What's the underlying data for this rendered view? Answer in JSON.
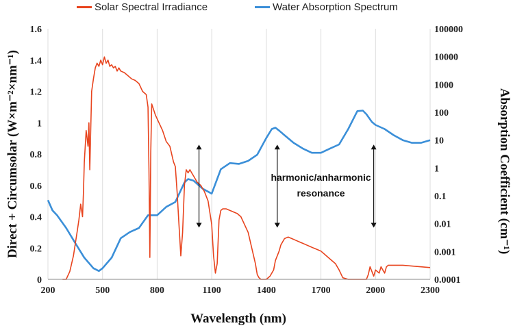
{
  "chart_data": {
    "type": "line",
    "title": "",
    "xlabel": "Wavelength (nm)",
    "ylabel_left": "Direct + Circumsolar (W×m⁻²×nm⁻¹)",
    "ylabel_right": "Absorption Coefficient (cm⁻¹)",
    "xlim": [
      200,
      2300
    ],
    "ylim_left": [
      0,
      1.6
    ],
    "ylim_right": [
      0.0001,
      100000
    ],
    "right_scale": "log",
    "x_ticks": [
      "200",
      "500",
      "800",
      "1100",
      "1400",
      "1700",
      "2000",
      "2300"
    ],
    "y_left_ticks": [
      "0",
      "0.2",
      "0.4",
      "0.6",
      "0.8",
      "1",
      "1.2",
      "1.4",
      "1.6"
    ],
    "y_right_ticks": [
      "0.0001",
      "0.001",
      "0.01",
      "0.1",
      "1",
      "10",
      "100",
      "1000",
      "10000",
      "100000"
    ],
    "legend_position": "top",
    "grid": "vertical",
    "series": [
      {
        "name": "Solar Spectral Irradiance",
        "axis": "left",
        "color": "#e8441e",
        "x": [
          280,
          300,
          320,
          340,
          360,
          370,
          380,
          390,
          395,
          400,
          410,
          420,
          425,
          430,
          440,
          450,
          460,
          470,
          480,
          490,
          500,
          510,
          520,
          530,
          540,
          550,
          560,
          570,
          580,
          590,
          600,
          620,
          640,
          660,
          680,
          700,
          720,
          740,
          750,
          755,
          760,
          765,
          770,
          790,
          810,
          830,
          850,
          870,
          890,
          900,
          910,
          920,
          930,
          940,
          950,
          960,
          970,
          980,
          990,
          1000,
          1020,
          1040,
          1060,
          1080,
          1100,
          1110,
          1120,
          1130,
          1140,
          1150,
          1160,
          1180,
          1200,
          1220,
          1240,
          1260,
          1280,
          1300,
          1320,
          1340,
          1350,
          1360,
          1370,
          1380,
          1400,
          1420,
          1440,
          1450,
          1470,
          1480,
          1500,
          1520,
          1540,
          1560,
          1580,
          1600,
          1620,
          1640,
          1660,
          1680,
          1700,
          1720,
          1740,
          1760,
          1780,
          1800,
          1820,
          1850,
          1900,
          1950,
          1960,
          1970,
          1980,
          1990,
          2000,
          2020,
          2030,
          2040,
          2050,
          2060,
          2070,
          2100,
          2150,
          2200,
          2250,
          2300
        ],
        "y": [
          0,
          0,
          0.05,
          0.15,
          0.3,
          0.38,
          0.48,
          0.4,
          0.55,
          0.75,
          0.95,
          0.85,
          1.0,
          0.7,
          1.2,
          1.28,
          1.35,
          1.38,
          1.36,
          1.4,
          1.37,
          1.42,
          1.38,
          1.4,
          1.36,
          1.37,
          1.35,
          1.36,
          1.33,
          1.35,
          1.33,
          1.32,
          1.3,
          1.28,
          1.27,
          1.25,
          1.2,
          1.18,
          1.1,
          0.7,
          0.14,
          0.8,
          1.12,
          1.05,
          1.0,
          0.95,
          0.88,
          0.85,
          0.75,
          0.72,
          0.55,
          0.35,
          0.15,
          0.3,
          0.6,
          0.7,
          0.68,
          0.7,
          0.68,
          0.66,
          0.62,
          0.6,
          0.56,
          0.5,
          0.35,
          0.15,
          0.04,
          0.1,
          0.38,
          0.44,
          0.45,
          0.45,
          0.44,
          0.43,
          0.42,
          0.4,
          0.35,
          0.3,
          0.2,
          0.1,
          0.03,
          0.01,
          0,
          0,
          0,
          0.02,
          0.06,
          0.12,
          0.18,
          0.22,
          0.26,
          0.27,
          0.26,
          0.25,
          0.24,
          0.23,
          0.22,
          0.21,
          0.2,
          0.19,
          0.18,
          0.16,
          0.14,
          0.12,
          0.1,
          0.06,
          0.01,
          0,
          0,
          0,
          0.03,
          0.08,
          0.05,
          0.02,
          0.06,
          0.04,
          0.08,
          0.06,
          0.04,
          0.08,
          0.09,
          0.09,
          0.09,
          0.085,
          0.08,
          0.075
        ]
      },
      {
        "name": "Water Absorption Spectrum",
        "axis": "right",
        "color": "#3b8fd8",
        "x": [
          200,
          225,
          250,
          300,
          350,
          400,
          450,
          480,
          500,
          550,
          600,
          650,
          700,
          750,
          800,
          850,
          900,
          950,
          970,
          1000,
          1050,
          1100,
          1150,
          1200,
          1250,
          1300,
          1350,
          1400,
          1430,
          1450,
          1470,
          1500,
          1550,
          1600,
          1650,
          1700,
          1750,
          1800,
          1850,
          1900,
          1930,
          1950,
          1980,
          2000,
          2050,
          2100,
          2150,
          2200,
          2250,
          2300
        ],
        "y": [
          0.07,
          0.03,
          0.02,
          0.007,
          0.002,
          0.0006,
          0.00025,
          0.0002,
          0.00025,
          0.0006,
          0.003,
          0.005,
          0.007,
          0.02,
          0.02,
          0.04,
          0.06,
          0.3,
          0.4,
          0.35,
          0.18,
          0.12,
          0.9,
          1.5,
          1.4,
          1.8,
          3,
          12,
          25,
          28,
          22,
          15,
          8,
          5,
          3.5,
          3.5,
          5,
          7,
          25,
          110,
          115,
          85,
          45,
          35,
          25,
          15,
          10,
          8,
          8,
          10
        ]
      }
    ],
    "annotations": [
      {
        "text": "harmonic/anharmonic",
        "x": 1700,
        "y_left": 0.63
      },
      {
        "text": "resonance",
        "x": 1700,
        "y_left": 0.53
      }
    ],
    "arrows": [
      {
        "x": 1030,
        "y_left": [
          0.33,
          0.86
        ]
      },
      {
        "x": 1460,
        "y_left": [
          0.33,
          0.86
        ]
      },
      {
        "x": 1990,
        "y_left": [
          0.33,
          0.86
        ]
      }
    ]
  }
}
